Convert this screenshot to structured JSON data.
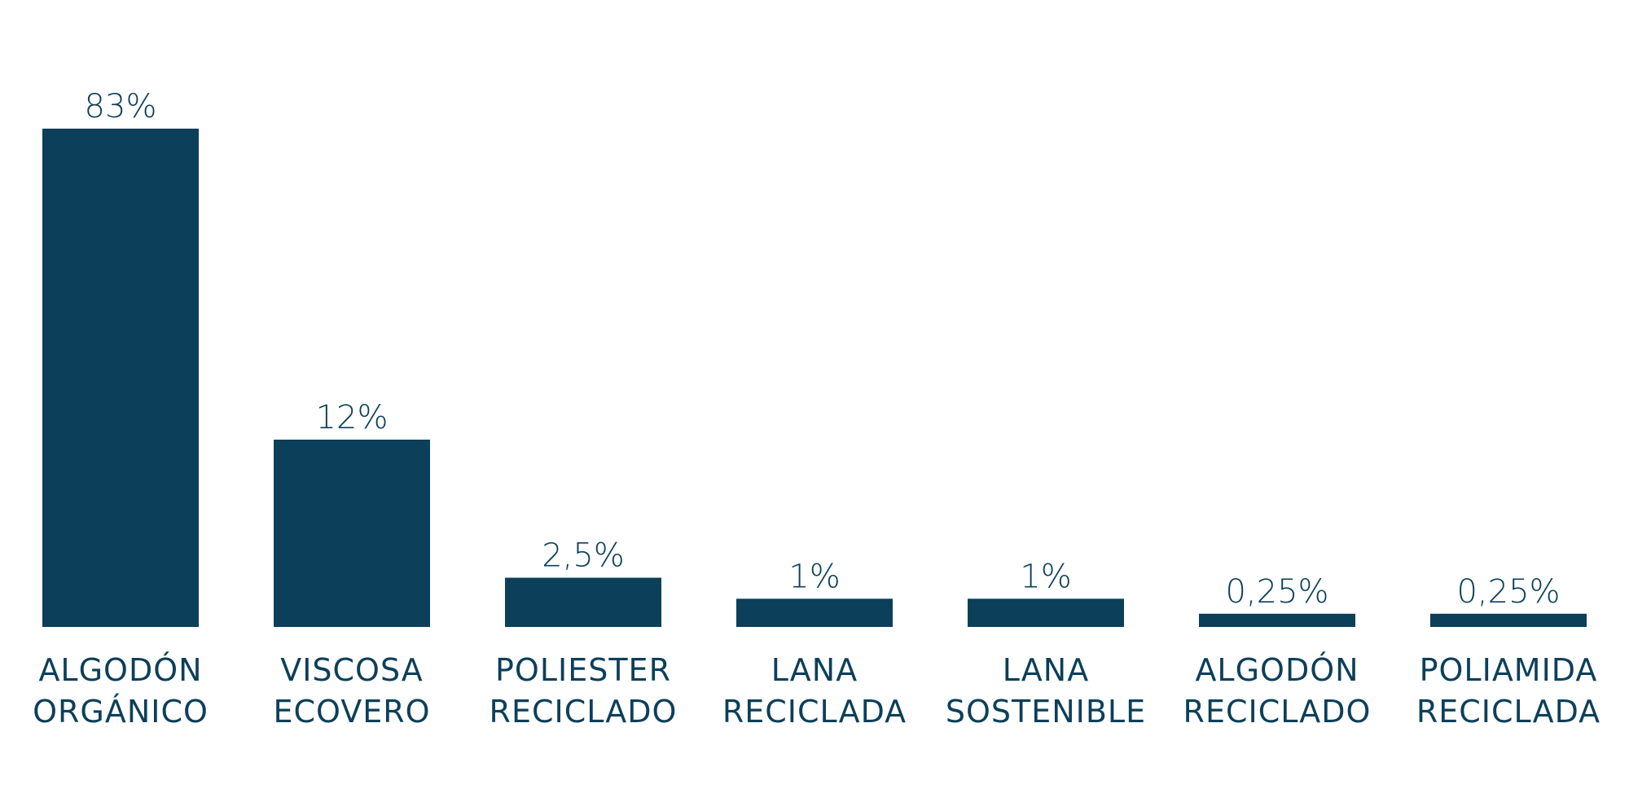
{
  "chart_data": {
    "type": "bar",
    "categories": [
      [
        "ALGODÓN",
        "ORGÁNICO"
      ],
      [
        "VISCOSA",
        "ECOVERO"
      ],
      [
        "POLIESTER",
        "RECICLADO"
      ],
      [
        "LANA",
        "RECICLADA"
      ],
      [
        "LANA",
        "SOSTENIBLE"
      ],
      [
        "ALGODÓN",
        "RECICLADO"
      ],
      [
        "POLIAMIDA",
        "RECICLADA"
      ]
    ],
    "values": [
      83,
      12,
      2.5,
      1,
      1,
      0.25,
      0.25
    ],
    "display_heights": [
      83,
      31.2,
      8.2,
      4.7,
      4.7,
      2.2,
      2.2
    ],
    "value_labels": [
      "83%",
      "12%",
      "2,5%",
      "1%",
      "1%",
      "0,25%",
      "0,25%"
    ],
    "ylim": [
      0,
      83
    ],
    "grid": false,
    "axes_visible": false,
    "bar_color": "#0c3f5a",
    "text_color": "#0c3f5a"
  }
}
